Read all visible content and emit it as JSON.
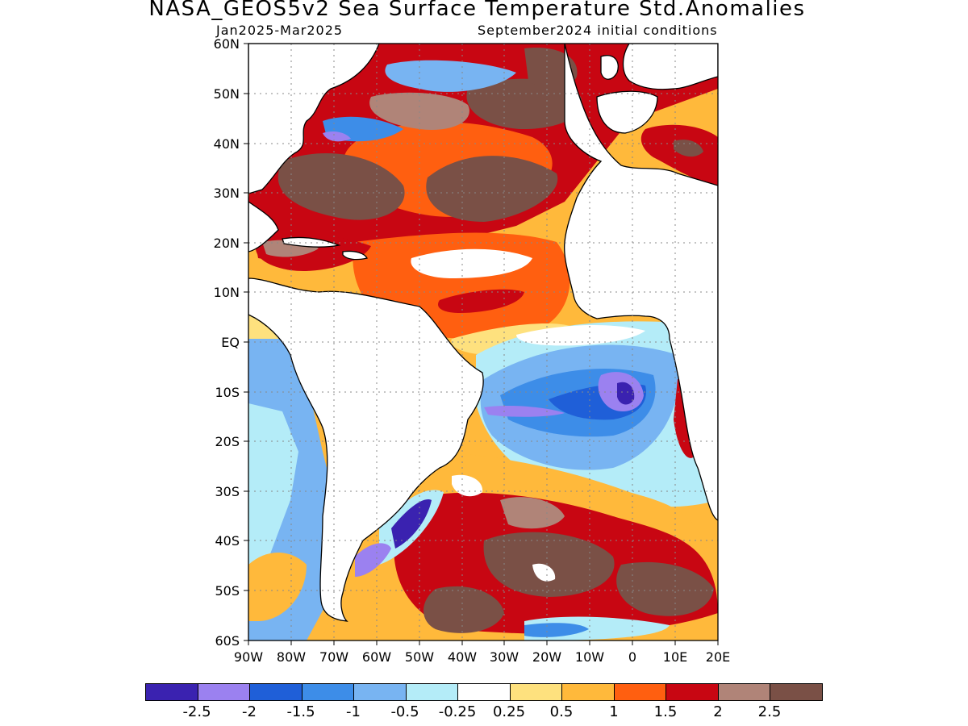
{
  "title": "NASA_GEOS5v2 Sea Surface Temperature Std.Anomalies",
  "subtitle_left": "Jan2025-Mar2025",
  "subtitle_right": "September2024 initial conditions",
  "lat_labels": [
    "60N",
    "50N",
    "40N",
    "30N",
    "20N",
    "10N",
    "EQ",
    "10S",
    "20S",
    "30S",
    "40S",
    "50S",
    "60S"
  ],
  "lon_labels": [
    "90W",
    "80W",
    "70W",
    "60W",
    "50W",
    "40W",
    "30W",
    "20W",
    "10W",
    "0",
    "10E",
    "20E"
  ],
  "colorbar": {
    "colors": [
      "#3a22b0",
      "#9b81f0",
      "#1f5fd8",
      "#3d8de8",
      "#78b4f2",
      "#b4ecf8",
      "#ffffff",
      "#fee17e",
      "#ffb93b",
      "#ff5f10",
      "#c80612",
      "#b08478",
      "#7a5046"
    ],
    "labels": [
      "-2.5",
      "-2",
      "-1.5",
      "-1",
      "-0.5",
      "-0.25",
      "0.25",
      "0.5",
      "1",
      "1.5",
      "2",
      "2.5"
    ]
  },
  "map": {
    "lat_range": [
      -60,
      60
    ],
    "lon_range": [
      -90,
      20
    ],
    "land_color": "#ffffff",
    "grid": "dotted"
  }
}
